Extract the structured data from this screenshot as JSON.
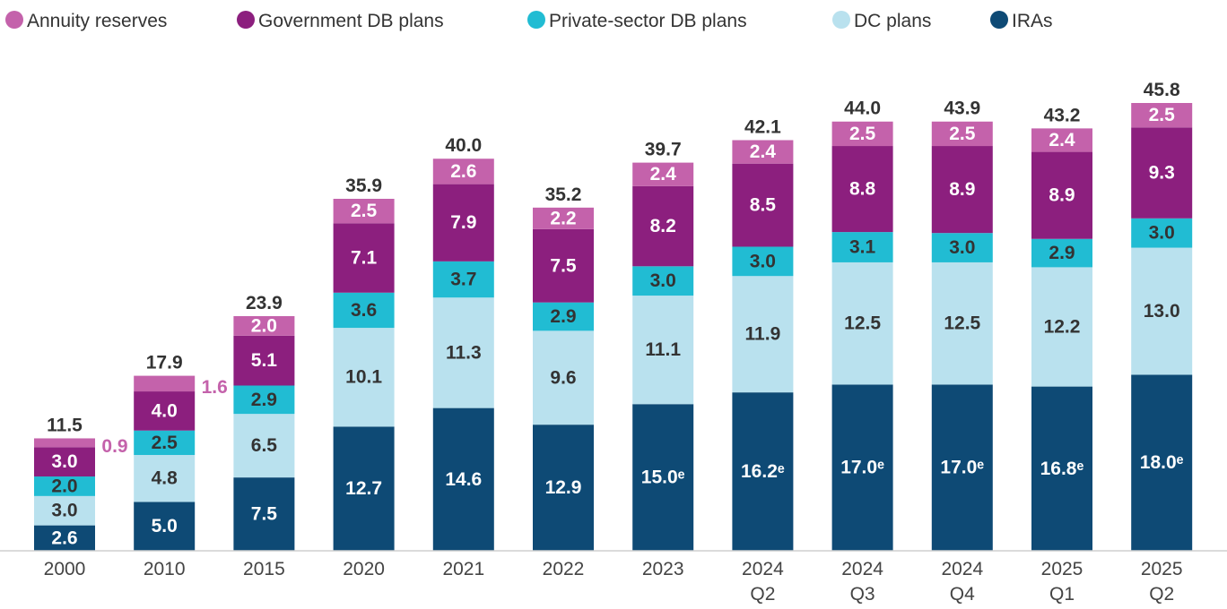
{
  "chart_data": {
    "type": "bar",
    "stacked": true,
    "categories": [
      [
        "2000"
      ],
      [
        "2010"
      ],
      [
        "2015"
      ],
      [
        "2020"
      ],
      [
        "2021"
      ],
      [
        "2022"
      ],
      [
        "2023"
      ],
      [
        "2024",
        "Q2"
      ],
      [
        "2024",
        "Q3"
      ],
      [
        "2024",
        "Q4"
      ],
      [
        "2025",
        "Q1"
      ],
      [
        "2025",
        "Q2"
      ]
    ],
    "series": [
      {
        "name": "IRAs",
        "color": "#0e4a75",
        "values": [
          2.6,
          5.0,
          7.5,
          12.7,
          14.6,
          12.9,
          15.0,
          16.2,
          17.0,
          17.0,
          16.8,
          18.0
        ],
        "labels": [
          "2.6",
          "5.0",
          "7.5",
          "12.7",
          "14.6",
          "12.9",
          "15.0ᵉ",
          "16.2ᵉ",
          "17.0ᵉ",
          "17.0ᵉ",
          "16.8ᵉ",
          "18.0ᵉ"
        ]
      },
      {
        "name": "DC plans",
        "color": "#b9e1ee",
        "values": [
          3.0,
          4.8,
          6.5,
          10.1,
          11.3,
          9.6,
          11.1,
          11.9,
          12.5,
          12.5,
          12.2,
          13.0
        ],
        "labels": [
          "3.0",
          "4.8",
          "6.5",
          "10.1",
          "11.3",
          "9.6",
          "11.1",
          "11.9",
          "12.5",
          "12.5",
          "12.2",
          "13.0"
        ]
      },
      {
        "name": "Private-sector DB plans",
        "color": "#21bcd3",
        "values": [
          2.0,
          2.5,
          2.9,
          3.6,
          3.7,
          2.9,
          3.0,
          3.0,
          3.1,
          3.0,
          2.9,
          3.0
        ],
        "labels": [
          "2.0",
          "2.5",
          "2.9",
          "3.6",
          "3.7",
          "2.9",
          "3.0",
          "3.0",
          "3.1",
          "3.0",
          "2.9",
          "3.0"
        ]
      },
      {
        "name": "Government DB plans",
        "color": "#8c1f7e",
        "values": [
          3.0,
          4.0,
          5.1,
          7.1,
          7.9,
          7.5,
          8.2,
          8.5,
          8.8,
          8.9,
          8.9,
          9.3
        ],
        "labels": [
          "3.0",
          "4.0",
          "5.1",
          "7.1",
          "7.9",
          "7.5",
          "8.2",
          "8.5",
          "8.8",
          "8.9",
          "8.9",
          "9.3"
        ]
      },
      {
        "name": "Annuity reserves",
        "color": "#c462ab",
        "values": [
          0.9,
          1.6,
          2.0,
          2.5,
          2.6,
          2.2,
          2.4,
          2.4,
          2.5,
          2.5,
          2.4,
          2.5
        ],
        "labels": [
          "0.9",
          "1.6",
          "2.0",
          "2.5",
          "2.6",
          "2.2",
          "2.4",
          "2.4",
          "2.5",
          "2.5",
          "2.4",
          "2.5"
        ]
      }
    ],
    "totals": [
      "11.5",
      "17.9",
      "23.9",
      "35.9",
      "40.0",
      "35.2",
      "39.7",
      "42.1",
      "44.0",
      "43.9",
      "43.2",
      "45.8"
    ],
    "legend": [
      "Annuity reserves",
      "Government DB plans",
      "Private-sector DB plans",
      "DC plans",
      "IRAs"
    ],
    "legend_position": "top",
    "ylim": [
      0,
      46
    ],
    "grid": false,
    "title": "",
    "xlabel": "",
    "ylabel": ""
  }
}
